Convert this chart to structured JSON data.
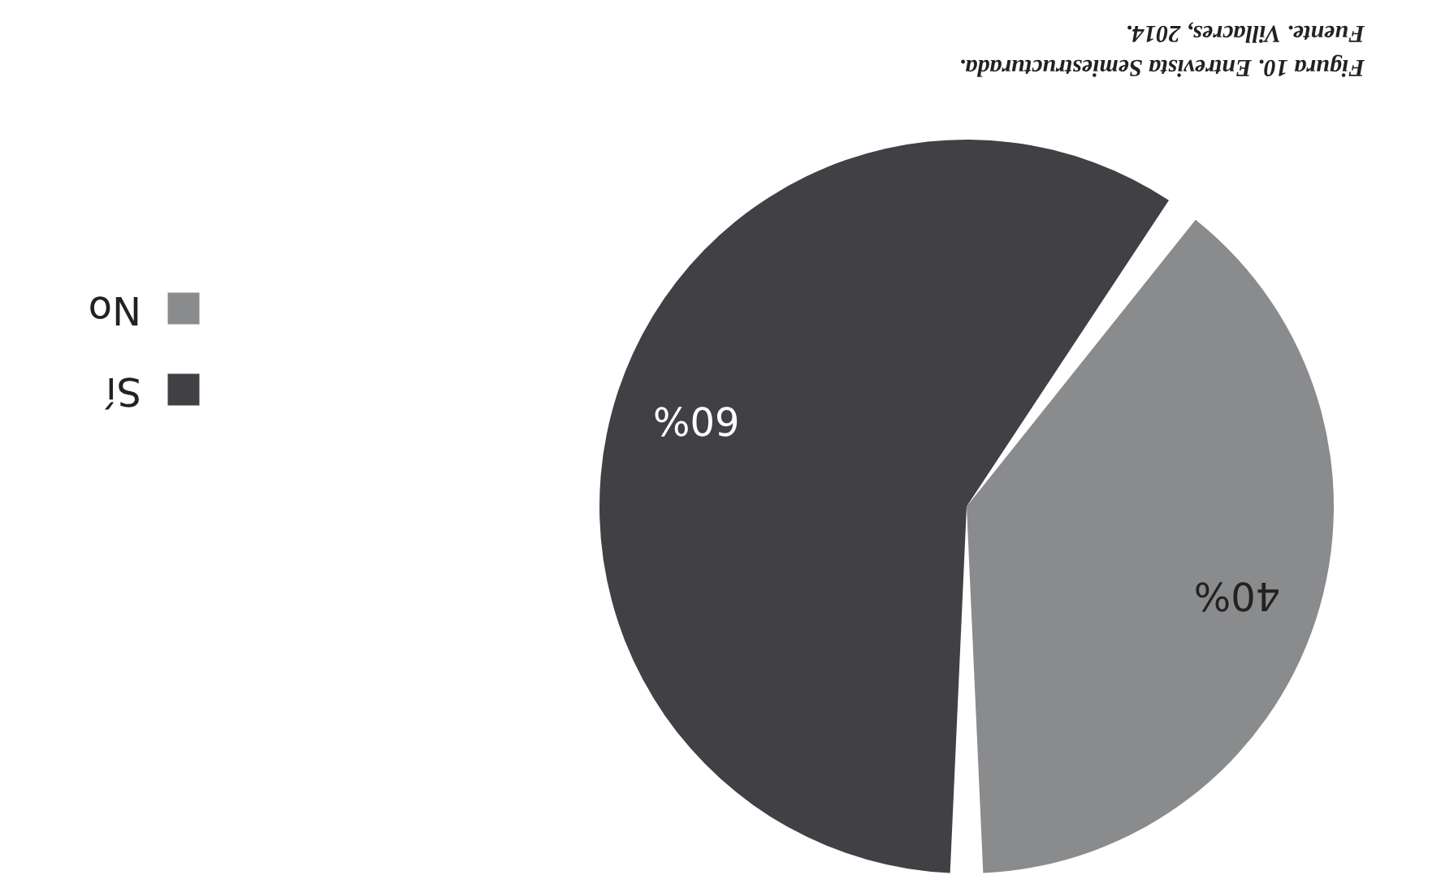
{
  "chart_data": {
    "type": "pie",
    "categories": [
      "Sí",
      "No"
    ],
    "values": [
      60,
      40
    ],
    "colors": [
      "#414045",
      "#8a8b8d"
    ],
    "value_labels": [
      "60%",
      "40%"
    ],
    "legend": "left",
    "annotations": [
      "Figura 10. Entrevista Semiestructurada.",
      "Fuente. Villacres, 2014."
    ]
  }
}
